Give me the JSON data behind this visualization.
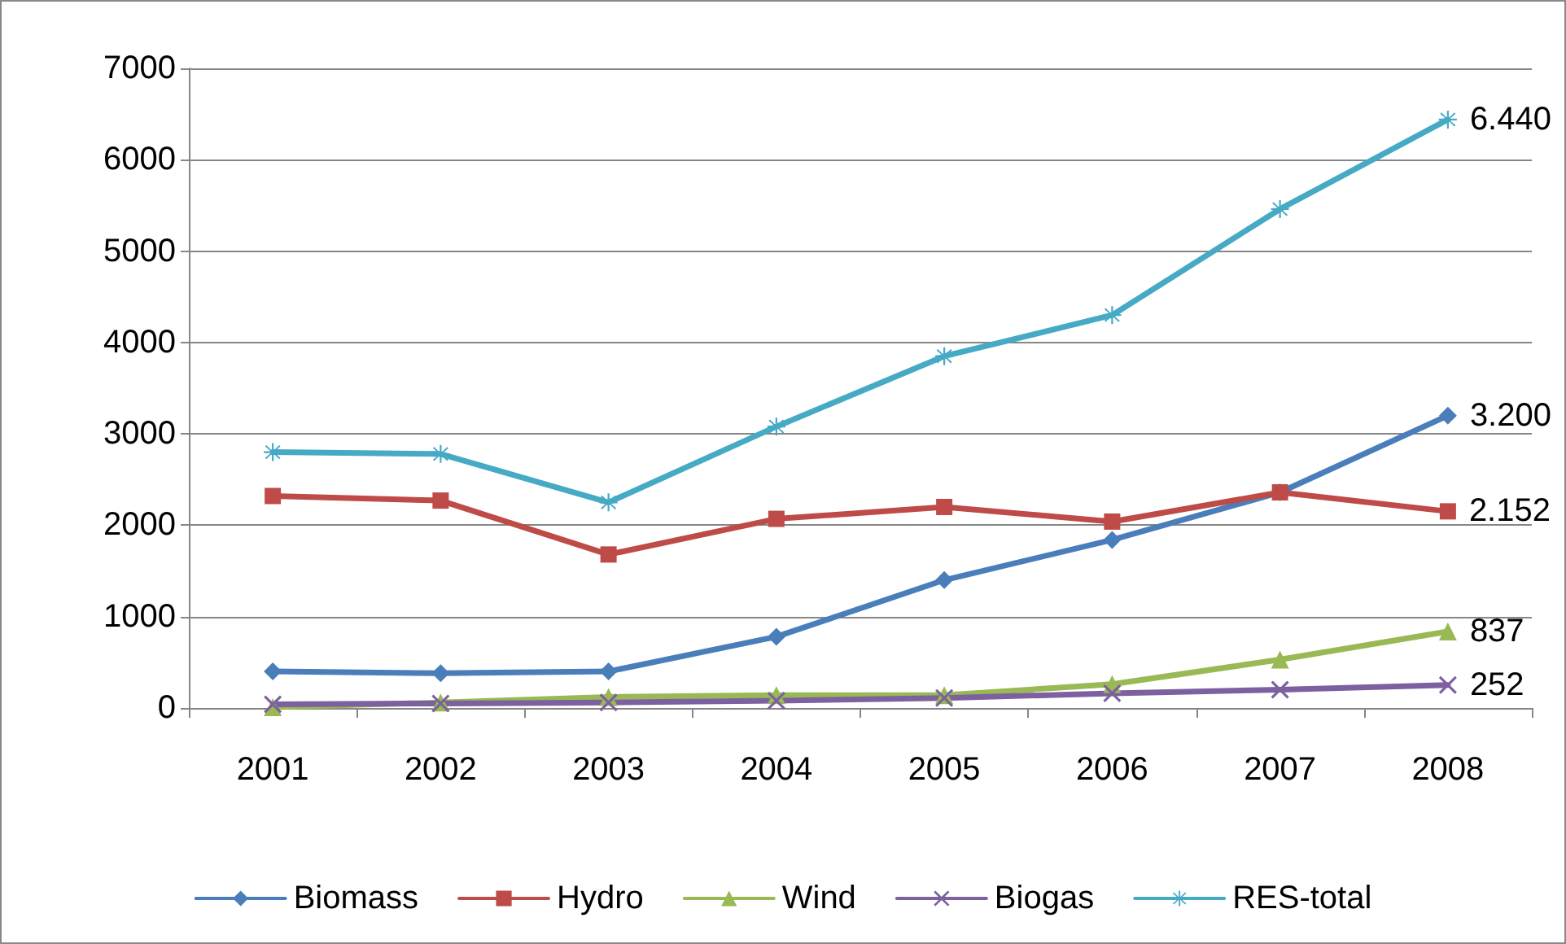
{
  "chart_data": {
    "type": "line",
    "categories": [
      "2001",
      "2002",
      "2003",
      "2004",
      "2005",
      "2006",
      "2007",
      "2008"
    ],
    "series": [
      {
        "name": "Biomass",
        "color": "#4a7ebb",
        "marker": "diamond",
        "values": [
          400,
          380,
          400,
          780,
          1400,
          1840,
          2360,
          3200
        ],
        "value_labels": [
          null,
          null,
          null,
          null,
          null,
          null,
          null,
          "3.200"
        ]
      },
      {
        "name": "Hydro",
        "color": "#be4b48",
        "marker": "square",
        "values": [
          2320,
          2270,
          1680,
          2070,
          2200,
          2040,
          2360,
          2152
        ],
        "value_labels": [
          null,
          null,
          null,
          null,
          null,
          null,
          null,
          "2.152"
        ]
      },
      {
        "name": "Wind",
        "color": "#98b954",
        "marker": "triangle",
        "values": [
          10,
          60,
          120,
          140,
          140,
          260,
          530,
          837
        ],
        "value_labels": [
          null,
          null,
          null,
          null,
          null,
          null,
          null,
          "837"
        ]
      },
      {
        "name": "Biogas",
        "color": "#7d60a0",
        "marker": "cross",
        "values": [
          40,
          50,
          60,
          80,
          110,
          160,
          200,
          252
        ],
        "value_labels": [
          null,
          null,
          null,
          null,
          null,
          null,
          null,
          "252"
        ]
      },
      {
        "name": "RES-total",
        "color": "#46aac5",
        "marker": "star",
        "values": [
          2800,
          2780,
          2250,
          3080,
          3850,
          4300,
          5460,
          6440
        ],
        "value_labels": [
          null,
          null,
          null,
          null,
          null,
          null,
          null,
          "6.440"
        ]
      }
    ],
    "ylim": [
      0,
      7000
    ],
    "yticks": [
      0,
      1000,
      2000,
      3000,
      4000,
      5000,
      6000,
      7000
    ],
    "grid": "y",
    "legend": "bottom",
    "line_style": "solid"
  }
}
